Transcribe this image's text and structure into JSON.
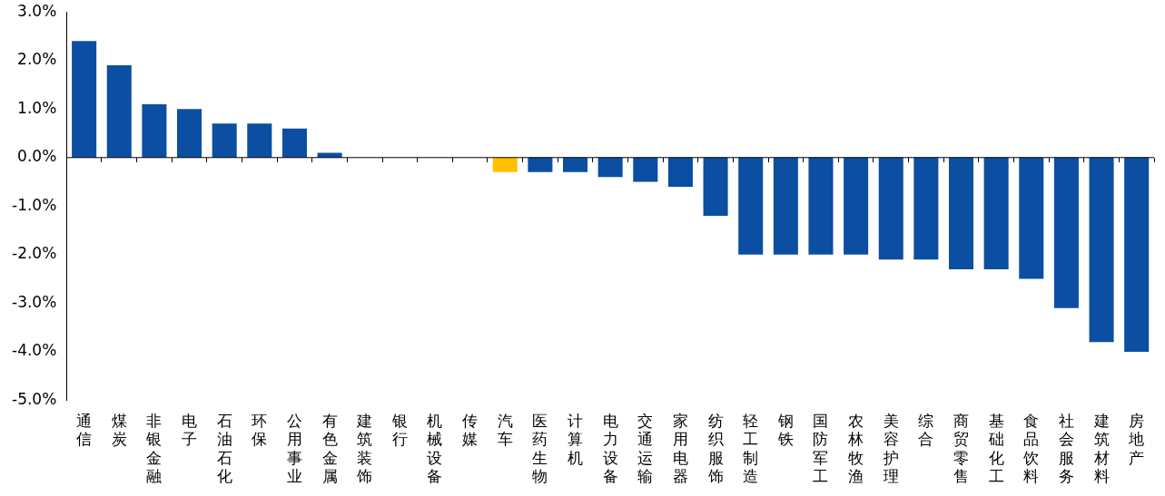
{
  "chart_data": {
    "type": "bar",
    "categories": [
      "通信",
      "煤炭",
      "非银金融",
      "电子",
      "石油石化",
      "环保",
      "公用事业",
      "有色金属",
      "建筑装饰",
      "银行",
      "机械设备",
      "传媒",
      "汽车",
      "医药生物",
      "计算机",
      "电力设备",
      "交通运输",
      "家用电器",
      "纺织服饰",
      "轻工制造",
      "钢铁",
      "国防军工",
      "农林牧渔",
      "美容护理",
      "综合",
      "商贸零售",
      "基础化工",
      "食品饮料",
      "社会服务",
      "建筑材料",
      "房地产"
    ],
    "values": [
      2.4,
      1.9,
      1.1,
      1.0,
      0.7,
      0.7,
      0.6,
      0.1,
      0,
      0,
      0,
      0,
      -0.3,
      -0.3,
      -0.3,
      -0.4,
      -0.5,
      -0.6,
      -1.2,
      -2.0,
      -2.0,
      -2.0,
      -2.0,
      -2.1,
      -2.1,
      -2.3,
      -2.3,
      -2.5,
      -3.1,
      -3.8,
      -4.0
    ],
    "colors": [
      "#0b4ea2",
      "#0b4ea2",
      "#0b4ea2",
      "#0b4ea2",
      "#0b4ea2",
      "#0b4ea2",
      "#0b4ea2",
      "#0b4ea2",
      "#0b4ea2",
      "#0b4ea2",
      "#0b4ea2",
      "#0b4ea2",
      "#ffc000",
      "#0b4ea2",
      "#0b4ea2",
      "#0b4ea2",
      "#0b4ea2",
      "#0b4ea2",
      "#0b4ea2",
      "#0b4ea2",
      "#0b4ea2",
      "#0b4ea2",
      "#0b4ea2",
      "#0b4ea2",
      "#0b4ea2",
      "#0b4ea2",
      "#0b4ea2",
      "#0b4ea2",
      "#0b4ea2",
      "#0b4ea2",
      "#0b4ea2"
    ],
    "ylim": [
      -5,
      3
    ],
    "yticks": [
      {
        "value": 3,
        "label": "3.0%"
      },
      {
        "value": 2,
        "label": "2.0%"
      },
      {
        "value": 1,
        "label": "1.0%"
      },
      {
        "value": 0,
        "label": "0.0%"
      },
      {
        "value": -1,
        "label": "-1.0%"
      },
      {
        "value": -2,
        "label": "-2.0%"
      },
      {
        "value": -3,
        "label": "-3.0%"
      },
      {
        "value": -4,
        "label": "-4.0%"
      },
      {
        "value": -5,
        "label": "-5.0%"
      }
    ],
    "ref_lines": [
      {
        "axis": "y",
        "value": 0,
        "color": "#000000"
      }
    ],
    "grid": false,
    "legend": false
  }
}
